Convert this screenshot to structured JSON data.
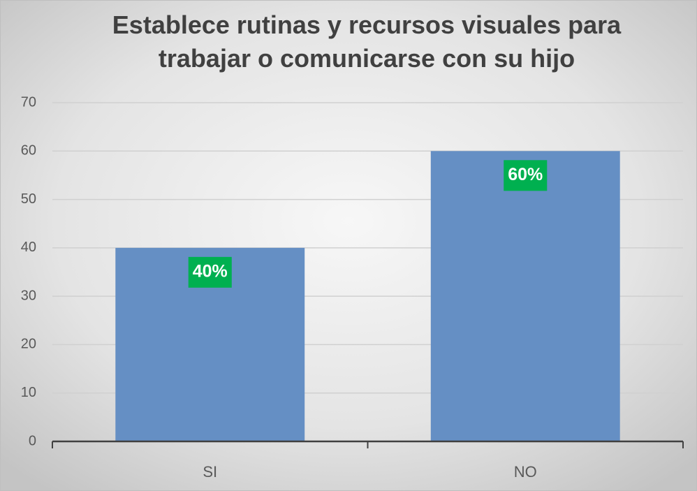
{
  "chart_data": {
    "type": "bar",
    "title": "Establece rutinas y recursos visuales para trabajar o comunicarse con su hijo",
    "categories": [
      "SI",
      "NO"
    ],
    "values": [
      40,
      60
    ],
    "value_labels": [
      "40%",
      "60%"
    ],
    "color": "#658fc4",
    "label_color": "#00b050",
    "ylim": [
      0,
      70
    ],
    "yticks": [
      0,
      10,
      20,
      30,
      40,
      50,
      60,
      70
    ],
    "grid": true
  }
}
